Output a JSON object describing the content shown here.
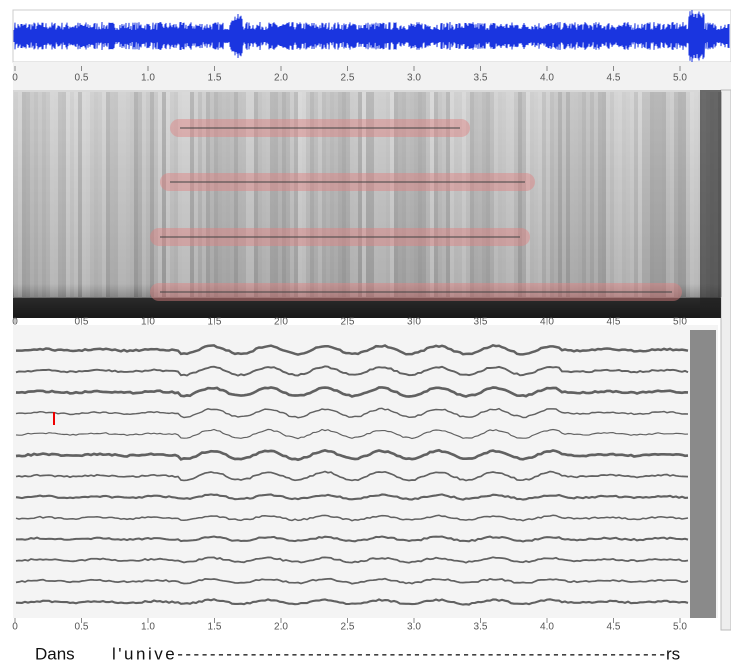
{
  "time_axis": {
    "ticks": [
      "0",
      "0.5",
      "1.0",
      "1.5",
      "2.0",
      "2.5",
      "3.0",
      "3.5",
      "4.0",
      "4.5",
      "5.0"
    ]
  },
  "lyrics": [
    "Dans",
    "l'unive------------------------------------------------------------",
    "rs"
  ]
}
